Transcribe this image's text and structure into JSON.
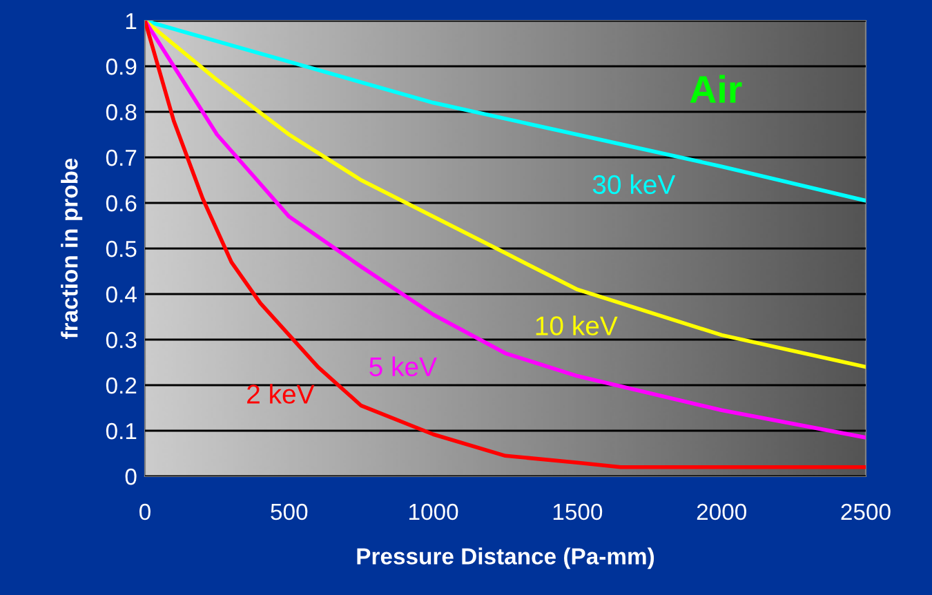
{
  "chart_data": {
    "type": "line",
    "xlabel": "Pressure Distance (Pa-mm)",
    "ylabel": "fraction in probe",
    "annotations": [
      "Air"
    ],
    "xlim": [
      0,
      2500
    ],
    "xticks": [
      0,
      500,
      1000,
      1500,
      2000,
      2500
    ],
    "ylim": [
      0,
      1
    ],
    "yticks": [
      0,
      0.1,
      0.2,
      0.3,
      0.4,
      0.5,
      0.6,
      0.7,
      0.8,
      0.9,
      1
    ],
    "grid": "y",
    "legend": false,
    "series": [
      {
        "name": "30 keV",
        "color": "#00ffff",
        "x": [
          0,
          500,
          1000,
          1500,
          2000,
          2500
        ],
        "values": [
          1,
          0.91,
          0.82,
          0.75,
          0.68,
          0.605
        ]
      },
      {
        "name": "10 keV",
        "color": "#ffff00",
        "x": [
          0,
          250,
          500,
          750,
          1000,
          1250,
          1500,
          2000,
          2500
        ],
        "values": [
          1,
          0.87,
          0.75,
          0.65,
          0.57,
          0.49,
          0.41,
          0.31,
          0.24
        ]
      },
      {
        "name": "5 keV",
        "color": "#ff00ff",
        "x": [
          0,
          250,
          500,
          750,
          1000,
          1250,
          1500,
          2000,
          2500
        ],
        "values": [
          1,
          0.75,
          0.57,
          0.46,
          0.355,
          0.27,
          0.22,
          0.145,
          0.085
        ]
      },
      {
        "name": "2 keV",
        "color": "#ff0000",
        "x": [
          0,
          100,
          200,
          300,
          400,
          500,
          600,
          750,
          1000,
          1250,
          1500,
          1650,
          2500
        ],
        "values": [
          1,
          0.78,
          0.61,
          0.47,
          0.38,
          0.31,
          0.24,
          0.155,
          0.092,
          0.045,
          0.03,
          0.02,
          0.02
        ]
      }
    ]
  }
}
